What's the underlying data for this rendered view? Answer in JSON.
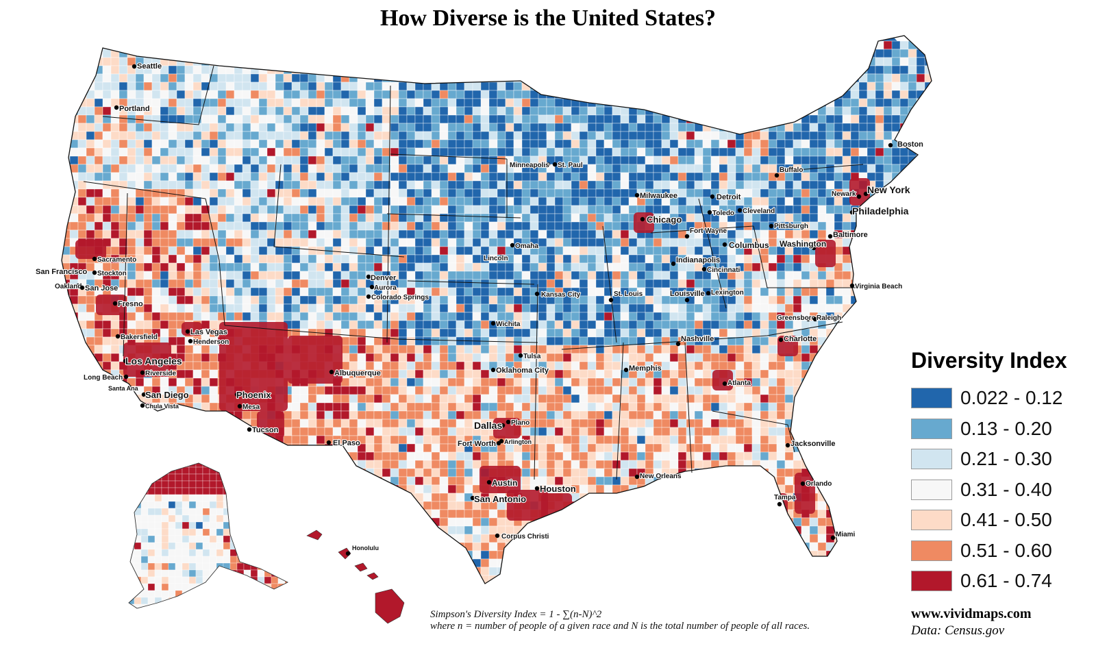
{
  "title": "How Diverse is the United States?",
  "legend": {
    "title": "Diversity Index",
    "classes": [
      {
        "label": "0.022 - 0.12",
        "color": "#2166ac"
      },
      {
        "label": "0.13 - 0.20",
        "color": "#67a9cf"
      },
      {
        "label": "0.21 - 0.30",
        "color": "#d1e5f0"
      },
      {
        "label": "0.31 - 0.40",
        "color": "#f7f7f7"
      },
      {
        "label": "0.41 - 0.50",
        "color": "#fddbc7"
      },
      {
        "label": "0.51 - 0.60",
        "color": "#ef8a62"
      },
      {
        "label": "0.61 - 0.74",
        "color": "#b2182b"
      }
    ]
  },
  "cities": [
    {
      "name": "Seattle",
      "cls": 4
    },
    {
      "name": "Portland",
      "cls": 4
    },
    {
      "name": "Sacramento",
      "cls": 6
    },
    {
      "name": "San Francisco",
      "cls": 6
    },
    {
      "name": "Stockton",
      "cls": 6
    },
    {
      "name": "Oakland",
      "cls": 6
    },
    {
      "name": "San Jose",
      "cls": 6
    },
    {
      "name": "Fresno",
      "cls": 6
    },
    {
      "name": "Bakersfield",
      "cls": 5
    },
    {
      "name": "Las Vegas",
      "cls": 6
    },
    {
      "name": "Henderson",
      "cls": 6
    },
    {
      "name": "Los Angeles",
      "cls": 6
    },
    {
      "name": "Riverside",
      "cls": 6
    },
    {
      "name": "Long Beach",
      "cls": 6
    },
    {
      "name": "Santa Ana",
      "cls": 6
    },
    {
      "name": "San Diego",
      "cls": 6
    },
    {
      "name": "Chula Vista",
      "cls": 6
    },
    {
      "name": "Phoenix",
      "cls": 6
    },
    {
      "name": "Mesa",
      "cls": 6
    },
    {
      "name": "Tucson",
      "cls": 6
    },
    {
      "name": "Albuquerque",
      "cls": 6
    },
    {
      "name": "El Paso",
      "cls": 3
    },
    {
      "name": "Denver",
      "cls": 5
    },
    {
      "name": "Aurora",
      "cls": 5
    },
    {
      "name": "Colorado Springs",
      "cls": 4
    },
    {
      "name": "Minneapolis",
      "cls": 2
    },
    {
      "name": "St. Paul",
      "cls": 2
    },
    {
      "name": "Omaha",
      "cls": 4
    },
    {
      "name": "Lincoln",
      "cls": 2
    },
    {
      "name": "Kansas City",
      "cls": 4
    },
    {
      "name": "Wichita",
      "cls": 4
    },
    {
      "name": "Tulsa",
      "cls": 5
    },
    {
      "name": "Oklahoma City",
      "cls": 5
    },
    {
      "name": "Dallas",
      "cls": 6
    },
    {
      "name": "Plano",
      "cls": 6
    },
    {
      "name": "Fort Worth",
      "cls": 6
    },
    {
      "name": "Arlington",
      "cls": 6
    },
    {
      "name": "Austin",
      "cls": 6
    },
    {
      "name": "San Antonio",
      "cls": 6
    },
    {
      "name": "Houston",
      "cls": 6
    },
    {
      "name": "Corpus Christi",
      "cls": 5
    },
    {
      "name": "Milwaukee",
      "cls": 5
    },
    {
      "name": "Chicago",
      "cls": 6
    },
    {
      "name": "Detroit",
      "cls": 5
    },
    {
      "name": "Toledo",
      "cls": 4
    },
    {
      "name": "Cleveland",
      "cls": 5
    },
    {
      "name": "Fort Wayne",
      "cls": 3
    },
    {
      "name": "Columbus",
      "cls": 5
    },
    {
      "name": "Indianapolis",
      "cls": 5
    },
    {
      "name": "Cincinnati",
      "cls": 4
    },
    {
      "name": "Louisville",
      "cls": 4
    },
    {
      "name": "Lexington",
      "cls": 3
    },
    {
      "name": "St. Louis",
      "cls": 5
    },
    {
      "name": "Memphis",
      "cls": 5
    },
    {
      "name": "Nashville",
      "cls": 5
    },
    {
      "name": "Atlanta",
      "cls": 6
    },
    {
      "name": "Charlotte",
      "cls": 6
    },
    {
      "name": "Greensboro",
      "cls": 5
    },
    {
      "name": "Raleigh",
      "cls": 5
    },
    {
      "name": "Virginia Beach",
      "cls": 5
    },
    {
      "name": "Washington",
      "cls": 6
    },
    {
      "name": "Baltimore",
      "cls": 6
    },
    {
      "name": "Philadelphia",
      "cls": 6
    },
    {
      "name": "New York",
      "cls": 6
    },
    {
      "name": "Newark",
      "cls": 6
    },
    {
      "name": "Boston",
      "cls": 5
    },
    {
      "name": "Buffalo",
      "cls": 4
    },
    {
      "name": "Pittsburgh",
      "cls": 3
    },
    {
      "name": "Jacksonville",
      "cls": 5
    },
    {
      "name": "Orlando",
      "cls": 6
    },
    {
      "name": "Tampa",
      "cls": 6
    },
    {
      "name": "Miami",
      "cls": 5
    },
    {
      "name": "New Orleans",
      "cls": 6
    },
    {
      "name": "Honolulu",
      "cls": 6
    }
  ],
  "footnote": {
    "line1": "Simpson's Diversity Index = 1 - ∑(n-N)^2",
    "line2": "where n = number of people of a given race and N is the total number of people of all races."
  },
  "credits": {
    "site": "www.vividmaps.com",
    "data": "Data: Census.gov"
  }
}
